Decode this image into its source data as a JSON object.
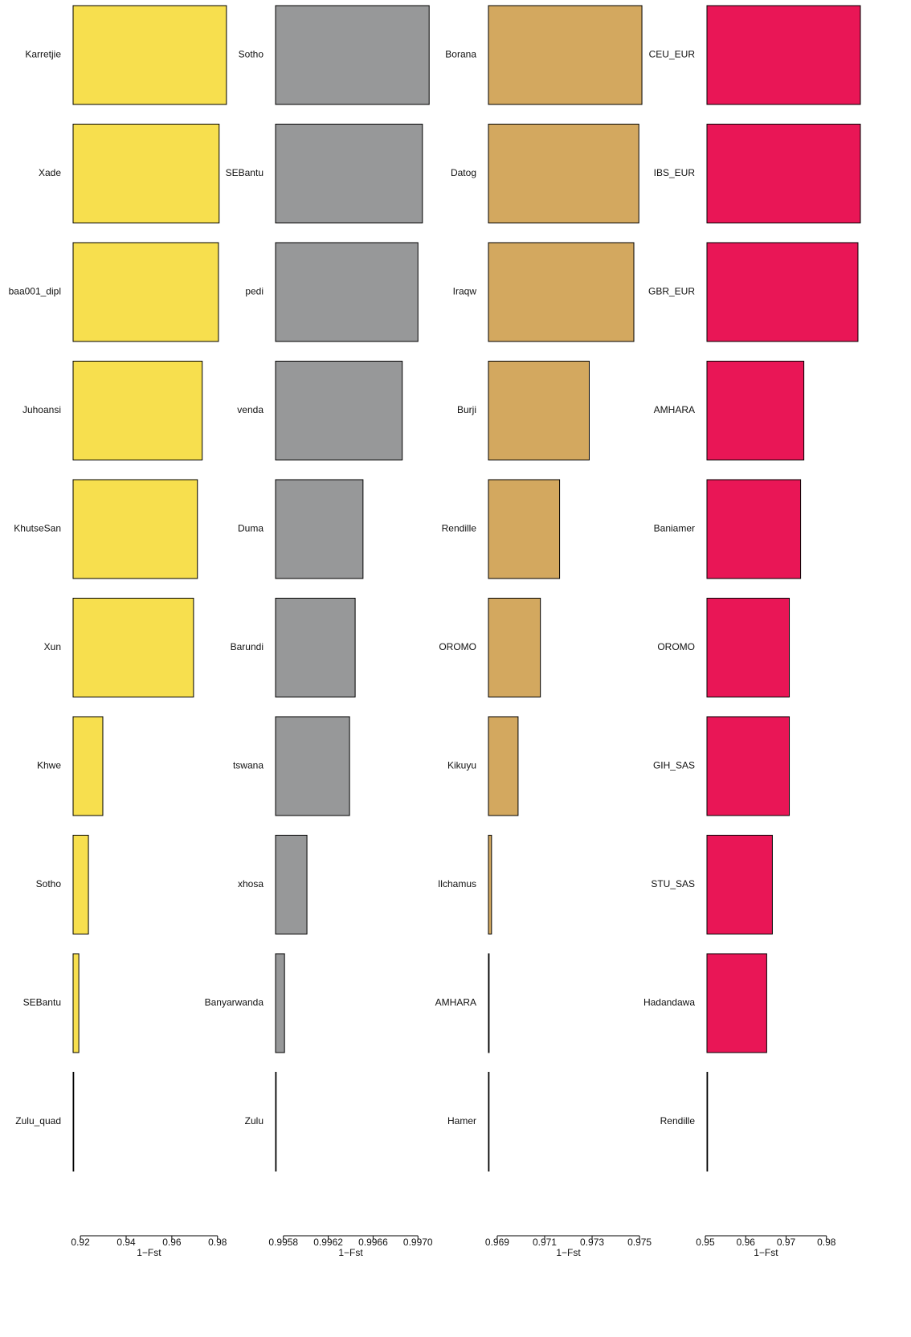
{
  "chart_data": [
    {
      "type": "bar",
      "orientation": "horizontal",
      "color": "#f7df4e",
      "categories": [
        "Karretjie",
        "Xade",
        "baa001_dipl",
        "Juhoansi",
        "KhutseSan",
        "Xun",
        "Khwe",
        "Sotho",
        "SEBantu",
        "Zulu_quad"
      ],
      "values": [
        0.9839,
        0.9807,
        0.9804,
        0.9733,
        0.9712,
        0.9695,
        0.9298,
        0.9235,
        0.9193,
        0.9168
      ],
      "xlim": [
        0.9168,
        0.985
      ],
      "xticks": [
        0.92,
        0.94,
        0.96,
        0.98
      ],
      "xlabel": "1−Fst"
    },
    {
      "type": "bar",
      "orientation": "horizontal",
      "color": "#979899",
      "categories": [
        "Sotho",
        "SEBantu",
        "pedi",
        "venda",
        "Duma",
        "Barundi",
        "tswana",
        "xhosa",
        "Banyarwanda",
        "Zulu"
      ],
      "values": [
        0.9971,
        0.99704,
        0.997,
        0.99686,
        0.99651,
        0.99644,
        0.99639,
        0.99601,
        0.99581,
        0.99573
      ],
      "xlim": [
        0.99573,
        0.99712
      ],
      "xticks": [
        0.9958,
        0.9962,
        0.9966,
        {
          "value": 0.997,
          "label": "0.9970"
        }
      ],
      "xlabel": "1−Fst"
    },
    {
      "type": "bar",
      "orientation": "horizontal",
      "color": "#d3a85f",
      "categories": [
        "Borana",
        "Datog",
        "Iraqw",
        "Burji",
        "Rendille",
        "OROMO",
        "Kikuyu",
        "Ilchamus",
        "AMHARA",
        "Hamer"
      ],
      "values": [
        0.9751,
        0.97497,
        0.97476,
        0.97288,
        0.97163,
        0.97082,
        0.96988,
        0.96876,
        0.96866,
        0.96863
      ],
      "xlim": [
        0.96863,
        0.9752
      ],
      "xticks": [
        0.969,
        0.971,
        0.973,
        0.975
      ],
      "xlabel": "1−Fst"
    },
    {
      "type": "bar",
      "orientation": "horizontal",
      "color": "#e91656",
      "categories": [
        "CEU_EUR",
        "IBS_EUR",
        "GBR_EUR",
        "AMHARA",
        "Baniamer",
        "OROMO",
        "GIH_SAS",
        "STU_SAS",
        "Hadandawa",
        "Rendille"
      ],
      "values": [
        0.9884,
        0.9884,
        0.9878,
        0.9744,
        0.9736,
        0.9708,
        0.9708,
        0.9666,
        0.9652,
        0.9504
      ],
      "xlim": [
        0.9504,
        0.989
      ],
      "xticks": [
        0.95,
        0.96,
        0.97,
        0.98
      ],
      "xlabel": "1−Fst"
    }
  ]
}
